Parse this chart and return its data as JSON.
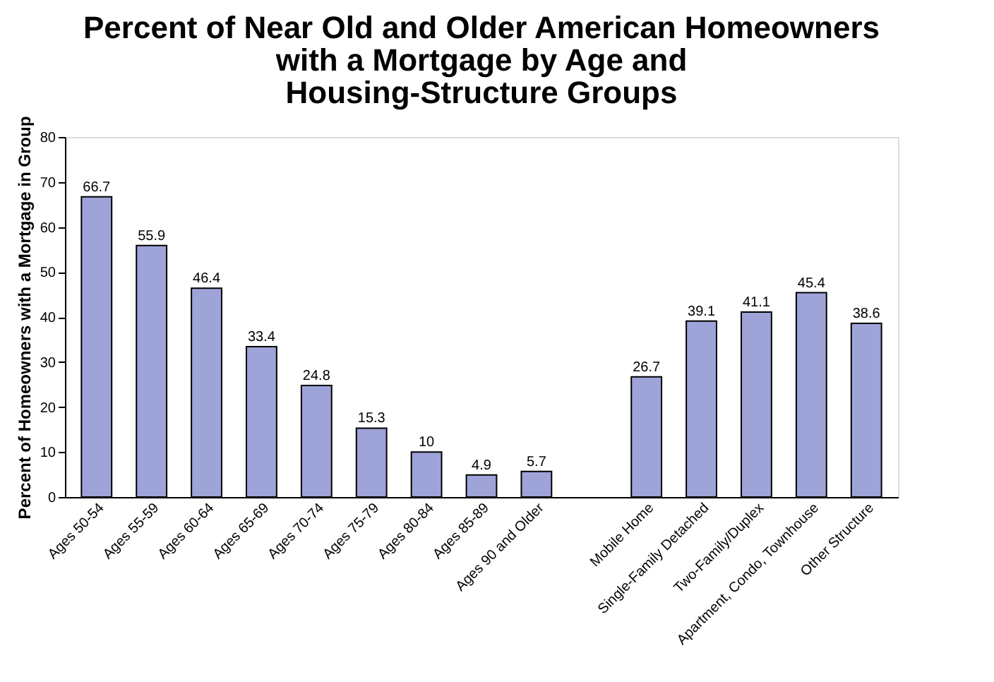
{
  "chart_data": {
    "type": "bar",
    "title": "Percent of Near Old and Older American Homeowners\nwith a Mortgage by Age and\nHousing-Structure Groups",
    "ylabel": "Percent of Homeowners with a Mortgage in Group",
    "categories": [
      "Ages 50-54",
      "Ages 55-59",
      "Ages 60-64",
      "Ages 65-69",
      "Ages 70-74",
      "Ages 75-79",
      "Ages 80-84",
      "Ages 85-89",
      "Ages 90 and Older",
      null,
      "Mobile Home",
      "Single-Family Detached",
      "Two-Family/Duplex",
      "Apartment, Condo, Townhouse",
      "Other Structure"
    ],
    "values": [
      66.7,
      55.9,
      46.4,
      33.4,
      24.8,
      15.3,
      10,
      4.9,
      5.7,
      null,
      26.7,
      39.1,
      41.1,
      45.4,
      38.6
    ],
    "color": "#9ea3d8",
    "ylim": [
      0,
      80
    ],
    "yticks": [
      0,
      10,
      20,
      30,
      40,
      50,
      60,
      70,
      80
    ],
    "grid": false,
    "data_labels": true
  }
}
